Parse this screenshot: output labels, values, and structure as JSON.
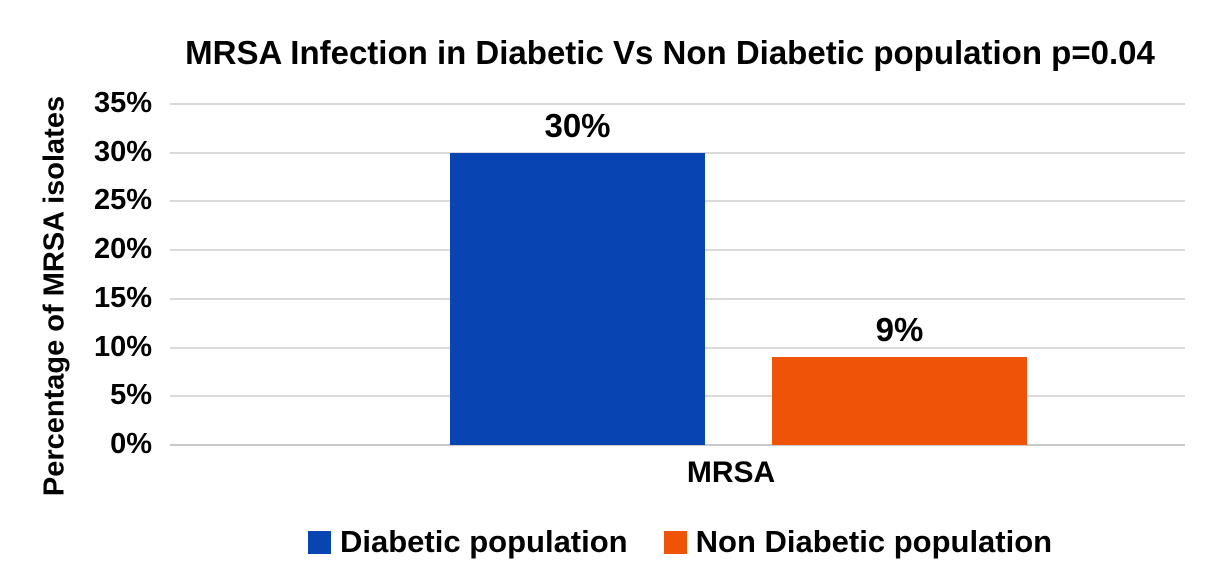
{
  "chart_data": {
    "type": "bar",
    "title": "MRSA Infection in Diabetic Vs Non Diabetic population p=0.04",
    "ylabel": "Percentage of MRSA isolates",
    "xlabel": "",
    "categories": [
      "MRSA"
    ],
    "series": [
      {
        "name": "Diabetic population",
        "values": [
          30
        ],
        "data_label": "30%",
        "color": "#0845B2"
      },
      {
        "name": "Non Diabetic population",
        "values": [
          9
        ],
        "data_label": "9%",
        "color": "#EF5307"
      }
    ],
    "ylim": [
      0,
      35
    ],
    "ytick_step": 5,
    "ytick_labels": [
      "0%",
      "5%",
      "10%",
      "15%",
      "20%",
      "25%",
      "30%",
      "35%"
    ],
    "grid": "horizontal-only",
    "gridline_color": "#D9D9D9",
    "legend_position": "bottom",
    "background_color": "#FFFFFF",
    "text_color": "#000000"
  }
}
